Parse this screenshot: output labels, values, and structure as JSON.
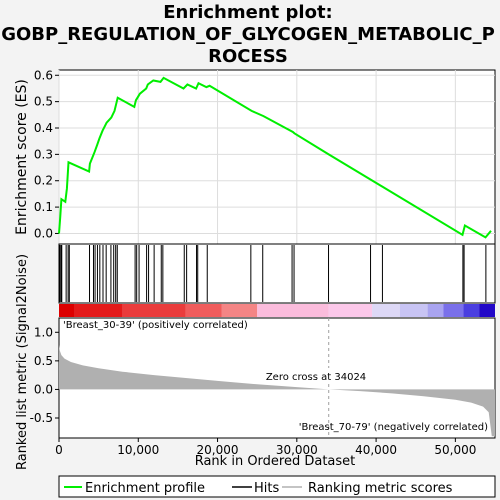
{
  "title_line1": "Enrichment plot:",
  "title_line2": "GOBP_REGULATION_OF_GLYCOGEN_METABOLIC_P",
  "title_line3": "ROCESS",
  "top_ylabel": "Enrichment score (ES)",
  "bottom_ylabel": "Ranked list metric (Signal2Noise)",
  "xlabel": "Rank in Ordered Dataset",
  "pos_label": "'Breast_30-39' (positively correlated)",
  "neg_label": "'Breast_70-79' (negatively correlated)",
  "zero_cross_label": "Zero cross at 34024",
  "legend": {
    "enrichment": "Enrichment profile",
    "hits": "Hits",
    "ranking": "Ranking metric scores"
  },
  "colors": {
    "enrichment_line": "#00ee00",
    "metric_fill": "#b0b0b0",
    "positive_text": "#cc0000",
    "negative_text": "#0000cc",
    "background": "#ffffff"
  },
  "chart_data": {
    "type": "line",
    "x_range": [
      0,
      55000
    ],
    "es_ylim": [
      -0.04,
      0.62
    ],
    "es_yticks": [
      0.0,
      0.1,
      0.2,
      0.3,
      0.4,
      0.5,
      0.6
    ],
    "es_yticklabels": [
      "0.0",
      "0.1",
      "0.2",
      "0.3",
      "0.4",
      "0.5",
      "0.6"
    ],
    "metric_ylim": [
      -0.85,
      1.25
    ],
    "metric_yticks": [
      -0.5,
      0.0,
      0.5,
      1.0
    ],
    "metric_yticklabels": [
      "-0.5",
      "0.0",
      "0.5",
      "1.0"
    ],
    "xticks": [
      0,
      10000,
      20000,
      30000,
      40000,
      50000
    ],
    "xticklabels": [
      "0",
      "10,000",
      "20,000",
      "30,000",
      "40,000",
      "50,000"
    ],
    "zero_cross": 34024,
    "enrichment_profile": {
      "x": [
        0,
        150,
        300,
        800,
        1000,
        1200,
        3800,
        3900,
        4300,
        4500,
        4800,
        5100,
        5500,
        6000,
        6600,
        7000,
        7200,
        7400,
        9500,
        9700,
        10200,
        11000,
        11200,
        11900,
        12800,
        13200,
        15700,
        16200,
        17300,
        17600,
        18600,
        19000,
        24300,
        25800,
        29500,
        29700,
        34024,
        50900,
        51200,
        53800,
        54500
      ],
      "y": [
        0.0,
        0.06,
        0.13,
        0.12,
        0.17,
        0.27,
        0.235,
        0.265,
        0.295,
        0.31,
        0.335,
        0.36,
        0.39,
        0.42,
        0.44,
        0.465,
        0.49,
        0.515,
        0.48,
        0.505,
        0.53,
        0.55,
        0.565,
        0.58,
        0.575,
        0.59,
        0.55,
        0.565,
        0.55,
        0.57,
        0.555,
        0.56,
        0.465,
        0.445,
        0.385,
        0.38,
        0.3,
        -0.005,
        0.03,
        -0.015,
        0.01
      ]
    },
    "hits": [
      100,
      250,
      350,
      900,
      1150,
      1300,
      3850,
      4350,
      4550,
      4850,
      5150,
      5550,
      5950,
      6550,
      6900,
      7150,
      7350,
      9600,
      9800,
      10100,
      11050,
      11300,
      12000,
      12900,
      13100,
      15800,
      16100,
      17350,
      17500,
      18700,
      24200,
      25700,
      29400,
      29650,
      34000,
      39300,
      40800,
      50950,
      51100,
      53850
    ],
    "metric_profile": {
      "x": [
        0,
        100,
        300,
        700,
        1500,
        3000,
        5000,
        8000,
        12000,
        16000,
        20000,
        25000,
        30000,
        34024,
        38000,
        42000,
        46000,
        50000,
        52000,
        53500,
        54200,
        54600,
        55000
      ],
      "y": [
        0.78,
        0.68,
        0.6,
        0.54,
        0.48,
        0.42,
        0.37,
        0.31,
        0.25,
        0.2,
        0.15,
        0.09,
        0.04,
        0.0,
        -0.03,
        -0.07,
        -0.12,
        -0.18,
        -0.23,
        -0.3,
        -0.4,
        -0.82,
        -0.82
      ]
    },
    "heat_bar": [
      {
        "from": 0,
        "to": 2000,
        "color": "#dd0000"
      },
      {
        "from": 2000,
        "to": 8000,
        "color": "#e41a1a"
      },
      {
        "from": 8000,
        "to": 16000,
        "color": "#ea3c3c"
      },
      {
        "from": 16000,
        "to": 20500,
        "color": "#f05c5c"
      },
      {
        "from": 20500,
        "to": 25000,
        "color": "#f48585"
      },
      {
        "from": 25000,
        "to": 34024,
        "color": "#fbbcdc"
      },
      {
        "from": 34024,
        "to": 39500,
        "color": "#fcc8ea"
      },
      {
        "from": 39500,
        "to": 43000,
        "color": "#ddd8f6"
      },
      {
        "from": 43000,
        "to": 46500,
        "color": "#c8c4f4"
      },
      {
        "from": 46500,
        "to": 48500,
        "color": "#a9a4f0"
      },
      {
        "from": 48500,
        "to": 51000,
        "color": "#7a70ea"
      },
      {
        "from": 51000,
        "to": 53000,
        "color": "#4a3ee0"
      },
      {
        "from": 53000,
        "to": 55000,
        "color": "#2208c8"
      }
    ]
  }
}
